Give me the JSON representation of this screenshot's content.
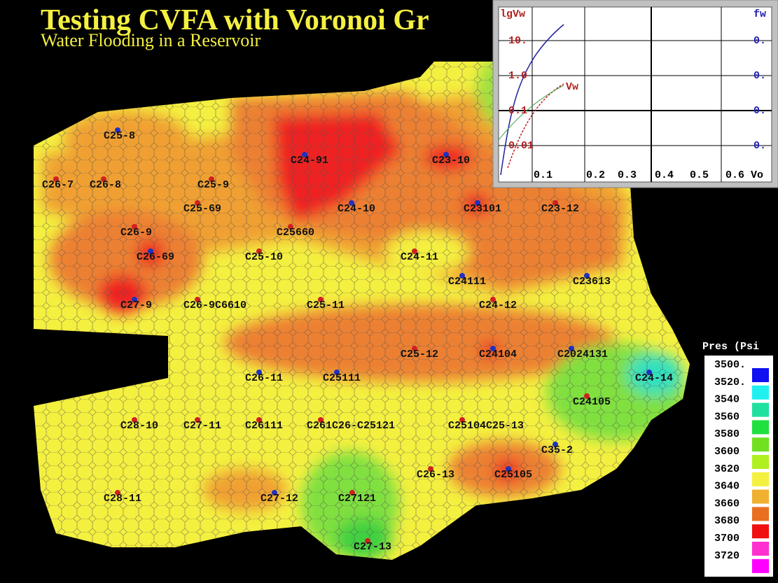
{
  "header": {
    "title": "Testing CVFA with Voronoi Gr",
    "subtitle": "Water Flooding in a Reservoir"
  },
  "wells": [
    "C25-8",
    "C24-91",
    "C23-10",
    "C26-7",
    "C26-8",
    "C25-9",
    "C25-69",
    "C24-10",
    "C23101",
    "C23-12",
    "C26-9",
    "C25660",
    "C26-69",
    "C25-10",
    "C24-11",
    "C24111",
    "C23613",
    "C27-9",
    "C26-9C6610",
    "C25-11",
    "C24-12",
    "C25-12",
    "C24104",
    "C2024131",
    "C24-14",
    "C26-11",
    "C25111",
    "C24105",
    "C28-10",
    "C27-11",
    "C26111",
    "C261C26-C25121",
    "C25104C25-13",
    "C35-2",
    "C26-13",
    "C25105",
    "C28-11",
    "C27-12",
    "C27121",
    "C27-13"
  ],
  "legend": {
    "title": "Pres (Psi",
    "entries": [
      "3500.",
      "3520.",
      "3540",
      "3560",
      "3580",
      "3600",
      "3620",
      "3640",
      "3660",
      "3680",
      "3700",
      "3720"
    ]
  },
  "inset": {
    "y_label": "lgVw",
    "y2_label": "fw",
    "y_ticks": [
      "10.",
      "1.0",
      "0.1",
      "0.01"
    ],
    "y2_ticks": [
      "0.",
      "0.",
      "0.",
      "0."
    ],
    "x_ticks": [
      "0.1",
      "0.2",
      "0.3",
      "0.4",
      "0.5",
      "0.6"
    ],
    "x_label": "Vo",
    "curve_label": "Vw"
  }
}
